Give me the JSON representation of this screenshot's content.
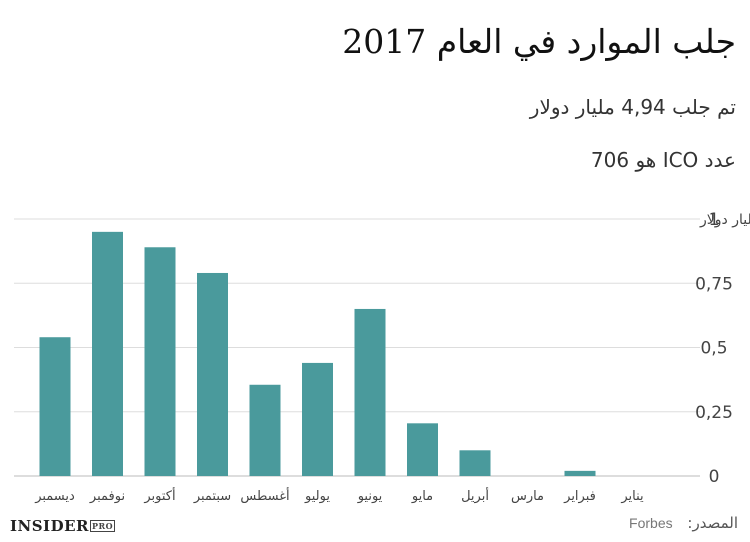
{
  "header": {
    "title": "جلب الموارد في العام 2017",
    "subtitle_line1": "تم جلب 4,94 مليار دولار",
    "subtitle_line2": "عدد  ICO هو 706"
  },
  "footer": {
    "source_label": "المصدر:",
    "source_value": "Forbes",
    "logo_text": "INSIDER",
    "logo_badge": "PRO"
  },
  "colors": {
    "bar": "#4a9a9c",
    "grid": "#dddddd",
    "axis_text": "#444444"
  },
  "chart_data": {
    "type": "bar",
    "categories": [
      "ديسمبر",
      "نوفمبر",
      "أكتوبر",
      "سبتمبر",
      "أغسطس",
      "يوليو",
      "يونيو",
      "مايو",
      "أبريل",
      "مارس",
      "فبراير",
      "يناير"
    ],
    "values": [
      0.54,
      0.95,
      0.89,
      0.79,
      0.355,
      0.44,
      0.65,
      0.205,
      0.1,
      0,
      0.02,
      0
    ],
    "ylim": [
      0,
      1
    ],
    "y_ticks": [
      "0",
      "0,25",
      "0,5",
      "0,75",
      "1"
    ],
    "y_unit": "مليار دولار",
    "grid": true,
    "y_axis_side": "right"
  }
}
